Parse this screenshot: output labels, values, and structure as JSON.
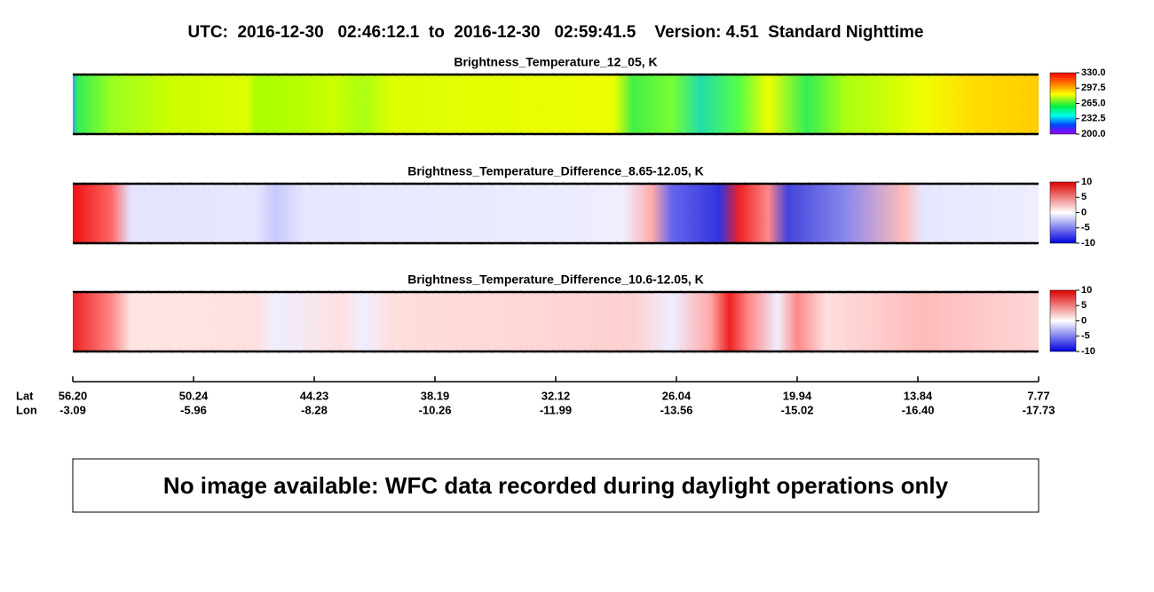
{
  "title": "UTC:  2016-12-30   02:46:12.1  to  2016-12-30   02:59:41.5    Version: 4.51  Standard Nighttime",
  "panels": [
    {
      "title": "Brightness_Temperature_12_05, K",
      "colorbar_labels": [
        "330.0",
        "297.5",
        "265.0",
        "232.5",
        "200.0"
      ]
    },
    {
      "title": "Brightness_Temperature_Difference_8.65-12.05, K",
      "colorbar_labels": [
        "10",
        "5",
        "0",
        "-5",
        "-10"
      ]
    },
    {
      "title": "Brightness_Temperature_Difference_10.6-12.05, K",
      "colorbar_labels": [
        "10",
        "5",
        "0",
        "-5",
        "-10"
      ]
    }
  ],
  "axis": {
    "lat_label": "Lat",
    "lon_label": "Lon",
    "lat": [
      "56.20",
      "50.24",
      "44.23",
      "38.19",
      "32.12",
      "26.04",
      "19.94",
      "13.84",
      "7.77"
    ],
    "lon": [
      "-3.09",
      "-5.96",
      "-8.28",
      "-10.26",
      "-11.99",
      "-13.56",
      "-15.02",
      "-16.40",
      "-17.73"
    ]
  },
  "message": "No image available: WFC data recorded during daylight operations only"
}
